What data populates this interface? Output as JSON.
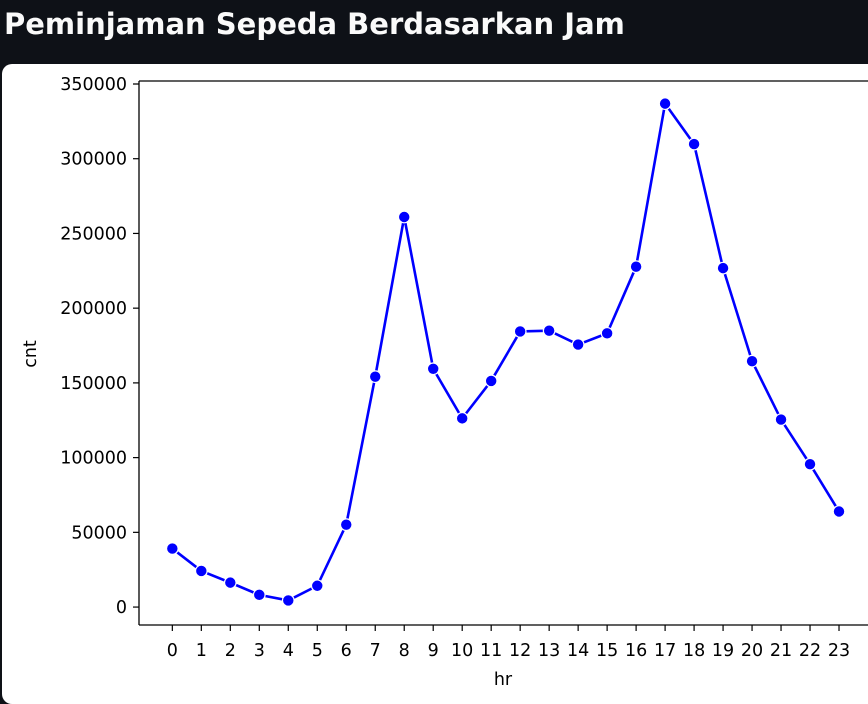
{
  "header": {
    "title": "Peminjaman Sepeda Berdasarkan Jam"
  },
  "colors": {
    "background": "#0e1117",
    "card": "#ffffff",
    "line": "#0000ff",
    "axis": "#000000"
  },
  "chart_data": {
    "type": "line",
    "title": "",
    "xlabel": "hr",
    "ylabel": "cnt",
    "x": [
      0,
      1,
      2,
      3,
      4,
      5,
      6,
      7,
      8,
      9,
      10,
      11,
      12,
      13,
      14,
      15,
      16,
      17,
      18,
      19,
      20,
      21,
      22,
      23
    ],
    "series": [
      {
        "color": "#0000ff",
        "marker": "circle",
        "values": [
          39130,
          24164,
          16352,
          8174,
          4428,
          14261,
          55132,
          154171,
          261001,
          159438,
          126257,
          151320,
          184414,
          184919,
          175652,
          183149,
          227748,
          336860,
          309772,
          226789,
          164550,
          125445,
          95612,
          63941
        ]
      }
    ],
    "xticks": [
      "0",
      "1",
      "2",
      "3",
      "4",
      "5",
      "6",
      "7",
      "8",
      "9",
      "10",
      "11",
      "12",
      "13",
      "14",
      "15",
      "16",
      "17",
      "18",
      "19",
      "20",
      "21",
      "22",
      "23"
    ],
    "yticks": [
      0,
      50000,
      100000,
      150000,
      200000,
      250000,
      300000,
      350000
    ],
    "ylim": [
      -12000,
      352000
    ],
    "xlim": [
      -1.15,
      24
    ],
    "grid": false,
    "legend": "none"
  }
}
